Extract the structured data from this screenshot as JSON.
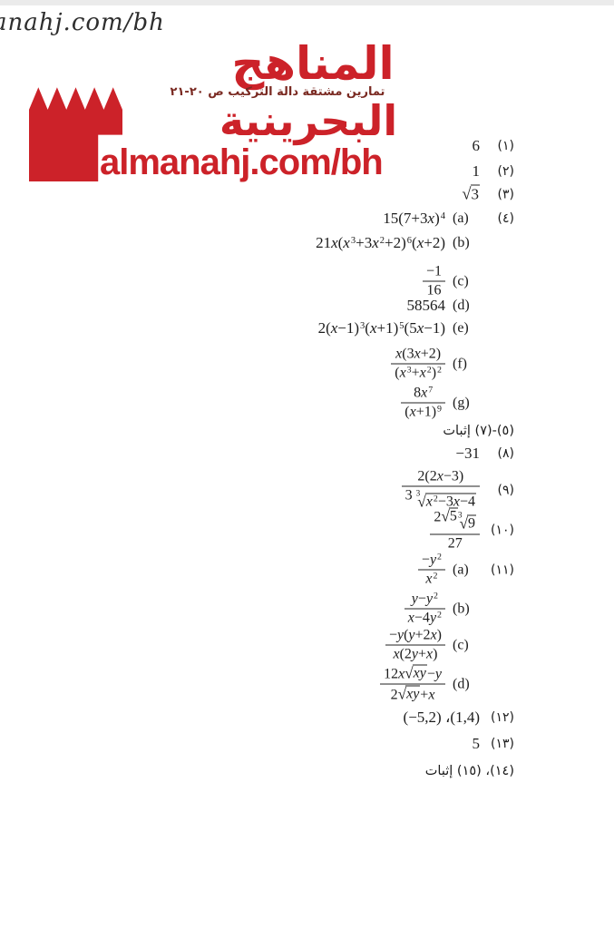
{
  "page": {
    "watermark": "anahj.com/bh"
  },
  "colors": {
    "brand_red": "#cc2229",
    "subtitle_maroon": "#7a2a22",
    "ink": "#1c1c1c"
  },
  "logo": {
    "title_line1": "المناهج",
    "subtitle": "تمارين مشتقة دالة التركيب ص ٢٠-٢١",
    "title_line2": "البحرينية",
    "domain": "almanahj.com/bh"
  },
  "answers": [
    {
      "id": "a1",
      "num": "(١)",
      "letter": null,
      "math": [
        {
          "t": "txt",
          "v": "6"
        }
      ]
    },
    {
      "id": "a2",
      "num": "(٢)",
      "letter": null,
      "math": [
        {
          "t": "txt",
          "v": "1"
        }
      ]
    },
    {
      "id": "a3",
      "num": "(٣)",
      "letter": null,
      "math": [
        {
          "t": "rad",
          "body": [
            {
              "t": "txt",
              "v": "3"
            }
          ]
        }
      ]
    },
    {
      "id": "a4a",
      "num": "(٤)",
      "letter": "(a)",
      "math": [
        {
          "t": "txt",
          "v": "15(7+3"
        },
        {
          "t": "var",
          "v": "x"
        },
        {
          "t": "txt",
          "v": ")"
        },
        {
          "t": "sup",
          "v": "4"
        }
      ]
    },
    {
      "id": "a4b",
      "num": null,
      "letter": "(b)",
      "math": [
        {
          "t": "txt",
          "v": "21"
        },
        {
          "t": "var",
          "v": "x"
        },
        {
          "t": "txt",
          "v": "("
        },
        {
          "t": "var",
          "v": "x"
        },
        {
          "t": "sup",
          "v": "3"
        },
        {
          "t": "txt",
          "v": "+3"
        },
        {
          "t": "var",
          "v": "x"
        },
        {
          "t": "sup",
          "v": "2"
        },
        {
          "t": "txt",
          "v": "+2)"
        },
        {
          "t": "sup",
          "v": "6"
        },
        {
          "t": "txt",
          "v": "("
        },
        {
          "t": "var",
          "v": "x"
        },
        {
          "t": "txt",
          "v": "+2)"
        }
      ]
    },
    {
      "id": "a4c",
      "num": null,
      "letter": "(c)",
      "math": [
        {
          "t": "frac",
          "num": [
            {
              "t": "txt",
              "v": "−1"
            }
          ],
          "den": [
            {
              "t": "txt",
              "v": "16"
            }
          ]
        }
      ]
    },
    {
      "id": "a4d",
      "num": null,
      "letter": "(d)",
      "math": [
        {
          "t": "txt",
          "v": "58564"
        }
      ]
    },
    {
      "id": "a4e",
      "num": null,
      "letter": "(e)",
      "math": [
        {
          "t": "txt",
          "v": "2("
        },
        {
          "t": "var",
          "v": "x"
        },
        {
          "t": "txt",
          "v": "−1)"
        },
        {
          "t": "sup",
          "v": "3"
        },
        {
          "t": "txt",
          "v": "("
        },
        {
          "t": "var",
          "v": "x"
        },
        {
          "t": "txt",
          "v": "+1)"
        },
        {
          "t": "sup",
          "v": "5"
        },
        {
          "t": "txt",
          "v": "(5"
        },
        {
          "t": "var",
          "v": "x"
        },
        {
          "t": "txt",
          "v": "−1)"
        }
      ]
    },
    {
      "id": "a4f",
      "num": null,
      "letter": "(f)",
      "math": [
        {
          "t": "frac",
          "num": [
            {
              "t": "var",
              "v": "x"
            },
            {
              "t": "txt",
              "v": "(3"
            },
            {
              "t": "var",
              "v": "x"
            },
            {
              "t": "txt",
              "v": "+2)"
            }
          ],
          "den": [
            {
              "t": "txt",
              "v": "("
            },
            {
              "t": "var",
              "v": "x"
            },
            {
              "t": "sup",
              "v": "3"
            },
            {
              "t": "txt",
              "v": "+"
            },
            {
              "t": "var",
              "v": "x"
            },
            {
              "t": "sup",
              "v": "2"
            },
            {
              "t": "txt",
              "v": ")"
            },
            {
              "t": "sup",
              "v": "2"
            }
          ]
        }
      ]
    },
    {
      "id": "a4g",
      "num": null,
      "letter": "(g)",
      "math": [
        {
          "t": "frac",
          "num": [
            {
              "t": "txt",
              "v": "8"
            },
            {
              "t": "var",
              "v": "x"
            },
            {
              "t": "sup",
              "v": "7"
            }
          ],
          "den": [
            {
              "t": "txt",
              "v": "("
            },
            {
              "t": "var",
              "v": "x"
            },
            {
              "t": "txt",
              "v": "+1)"
            },
            {
              "t": "sup",
              "v": "9"
            }
          ]
        }
      ]
    },
    {
      "id": "a5to7",
      "label": "(٥)-(٧) إثبات"
    },
    {
      "id": "a8",
      "num": "(٨)",
      "letter": null,
      "math": [
        {
          "t": "txt",
          "v": "−31"
        }
      ]
    },
    {
      "id": "a9",
      "num": "(٩)",
      "letter": null,
      "math": [
        {
          "t": "frac",
          "num": [
            {
              "t": "txt",
              "v": "2(2"
            },
            {
              "t": "var",
              "v": "x"
            },
            {
              "t": "txt",
              "v": "−3)"
            }
          ],
          "den": [
            {
              "t": "txt",
              "v": "3 "
            },
            {
              "t": "rad",
              "idx": "3",
              "body": [
                {
                  "t": "var",
                  "v": "x"
                },
                {
                  "t": "sup",
                  "v": "2"
                },
                {
                  "t": "txt",
                  "v": "−3"
                },
                {
                  "t": "var",
                  "v": "x"
                },
                {
                  "t": "txt",
                  "v": "−4"
                }
              ]
            }
          ]
        }
      ]
    },
    {
      "id": "a10",
      "num": "(١٠)",
      "letter": null,
      "math": [
        {
          "t": "frac",
          "num": [
            {
              "t": "txt",
              "v": "2"
            },
            {
              "t": "rad",
              "body": [
                {
                  "t": "txt",
                  "v": "5"
                }
              ]
            },
            {
              "t": "rad",
              "idx": "3",
              "body": [
                {
                  "t": "txt",
                  "v": "9"
                }
              ]
            }
          ],
          "den": [
            {
              "t": "txt",
              "v": "27"
            }
          ]
        }
      ]
    },
    {
      "id": "a11a",
      "num": "(١١)",
      "letter": "(a)",
      "math": [
        {
          "t": "frac",
          "num": [
            {
              "t": "txt",
              "v": "−"
            },
            {
              "t": "var",
              "v": "y"
            },
            {
              "t": "sup",
              "v": "2"
            }
          ],
          "den": [
            {
              "t": "var",
              "v": "x"
            },
            {
              "t": "sup",
              "v": "2"
            }
          ]
        }
      ]
    },
    {
      "id": "a11b",
      "num": null,
      "letter": "(b)",
      "math": [
        {
          "t": "frac",
          "num": [
            {
              "t": "var",
              "v": "y"
            },
            {
              "t": "txt",
              "v": "−"
            },
            {
              "t": "var",
              "v": "y"
            },
            {
              "t": "sup",
              "v": "2"
            }
          ],
          "den": [
            {
              "t": "var",
              "v": "x"
            },
            {
              "t": "txt",
              "v": "−4"
            },
            {
              "t": "var",
              "v": "y"
            },
            {
              "t": "sup",
              "v": "2"
            }
          ]
        }
      ]
    },
    {
      "id": "a11c",
      "num": null,
      "letter": "(c)",
      "math": [
        {
          "t": "frac",
          "num": [
            {
              "t": "txt",
              "v": "−"
            },
            {
              "t": "var",
              "v": "y"
            },
            {
              "t": "txt",
              "v": "("
            },
            {
              "t": "var",
              "v": "y"
            },
            {
              "t": "txt",
              "v": "+2"
            },
            {
              "t": "var",
              "v": "x"
            },
            {
              "t": "txt",
              "v": ")"
            }
          ],
          "den": [
            {
              "t": "var",
              "v": "x"
            },
            {
              "t": "txt",
              "v": "(2"
            },
            {
              "t": "var",
              "v": "y"
            },
            {
              "t": "txt",
              "v": "+"
            },
            {
              "t": "var",
              "v": "x"
            },
            {
              "t": "txt",
              "v": ")"
            }
          ]
        }
      ]
    },
    {
      "id": "a11d",
      "num": null,
      "letter": "(d)",
      "math": [
        {
          "t": "frac",
          "num": [
            {
              "t": "txt",
              "v": "12"
            },
            {
              "t": "var",
              "v": "x"
            },
            {
              "t": "rad",
              "body": [
                {
                  "t": "var",
                  "v": "xy"
                }
              ]
            },
            {
              "t": "txt",
              "v": "−"
            },
            {
              "t": "var",
              "v": "y"
            }
          ],
          "den": [
            {
              "t": "txt",
              "v": "2"
            },
            {
              "t": "rad",
              "body": [
                {
                  "t": "var",
                  "v": "xy"
                }
              ]
            },
            {
              "t": "txt",
              "v": "+"
            },
            {
              "t": "var",
              "v": "x"
            }
          ]
        }
      ]
    },
    {
      "id": "a12",
      "num": "(١٢)",
      "letter": null,
      "math": [
        {
          "t": "txt",
          "v": "(−5,2) ،(1,4)"
        }
      ]
    },
    {
      "id": "a13",
      "num": "(١٣)",
      "letter": null,
      "math": [
        {
          "t": "txt",
          "v": "5"
        }
      ]
    },
    {
      "id": "a14to15",
      "label": "(١٤)، (١٥) إثبات"
    }
  ]
}
